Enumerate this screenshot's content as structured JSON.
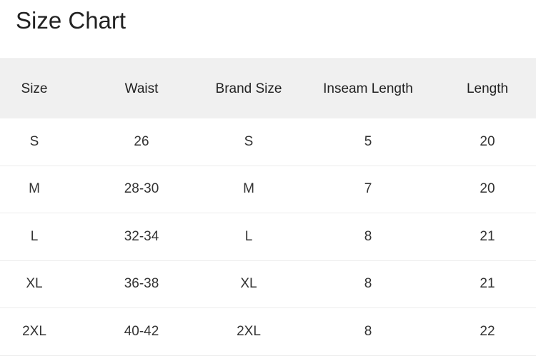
{
  "title": "Size Chart",
  "headers": [
    "Size",
    "Waist",
    "Brand Size",
    "Inseam Length",
    "Length"
  ],
  "rows": [
    [
      "S",
      "26",
      "S",
      "5",
      "20"
    ],
    [
      "M",
      "28-30",
      "M",
      "7",
      "20"
    ],
    [
      "L",
      "32-34",
      "L",
      "8",
      "21"
    ],
    [
      "XL",
      "36-38",
      "XL",
      "8",
      "21"
    ],
    [
      "2XL",
      "40-42",
      "2XL",
      "8",
      "22"
    ]
  ]
}
